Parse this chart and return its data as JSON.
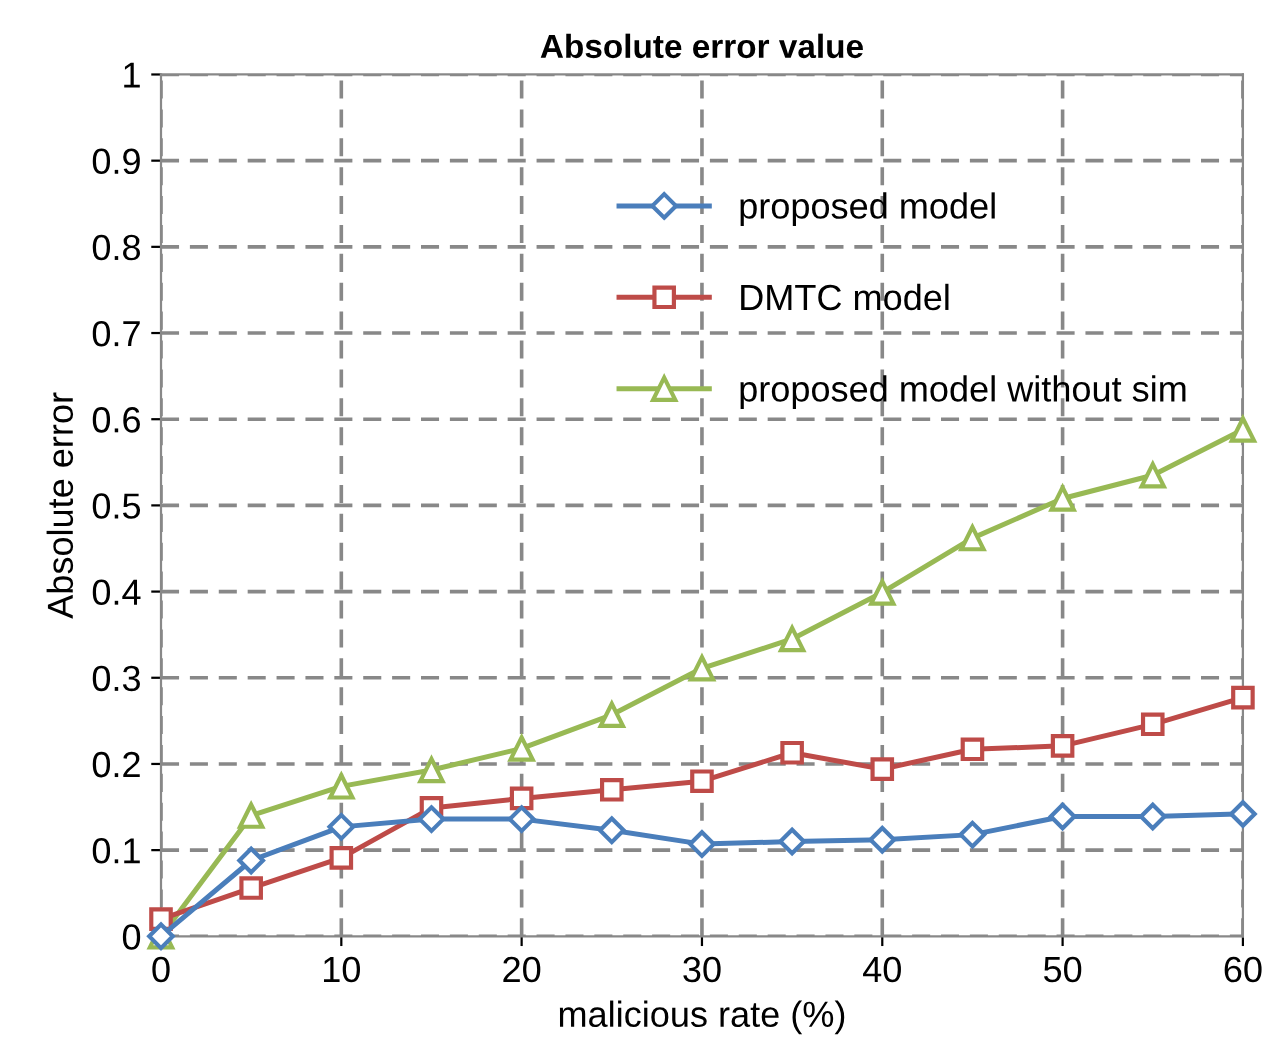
{
  "chart_data": {
    "type": "line",
    "title": "Absolute error value",
    "xlabel": "malicious rate (%)",
    "ylabel": "Absolute error",
    "x": [
      0,
      5,
      10,
      15,
      20,
      25,
      30,
      35,
      40,
      45,
      50,
      55,
      60
    ],
    "series": [
      {
        "name": "proposed model",
        "color": "#4a7ebb",
        "marker": "diamond",
        "values": [
          0.0,
          0.088,
          0.127,
          0.136,
          0.136,
          0.123,
          0.107,
          0.11,
          0.112,
          0.118,
          0.139,
          0.139,
          0.142
        ]
      },
      {
        "name": "DMTC model",
        "color": "#be4b48",
        "marker": "square",
        "values": [
          0.02,
          0.056,
          0.091,
          0.149,
          0.16,
          0.17,
          0.18,
          0.213,
          0.194,
          0.217,
          0.221,
          0.246,
          0.277
        ]
      },
      {
        "name": "proposed model without sim",
        "color": "#98b954",
        "marker": "triangle",
        "values": [
          0.0,
          0.14,
          0.174,
          0.193,
          0.218,
          0.257,
          0.311,
          0.345,
          0.399,
          0.462,
          0.508,
          0.535,
          0.588
        ]
      }
    ],
    "xlim": [
      0,
      60
    ],
    "xticks": [
      0,
      10,
      20,
      30,
      40,
      50,
      60
    ],
    "ylim": [
      0,
      1
    ],
    "yticks": [
      0,
      0.1,
      0.2,
      0.3,
      0.4,
      0.5,
      0.6,
      0.7,
      0.8,
      0.9,
      1
    ],
    "grid": true,
    "legend": "top right",
    "line_style": "solid"
  }
}
